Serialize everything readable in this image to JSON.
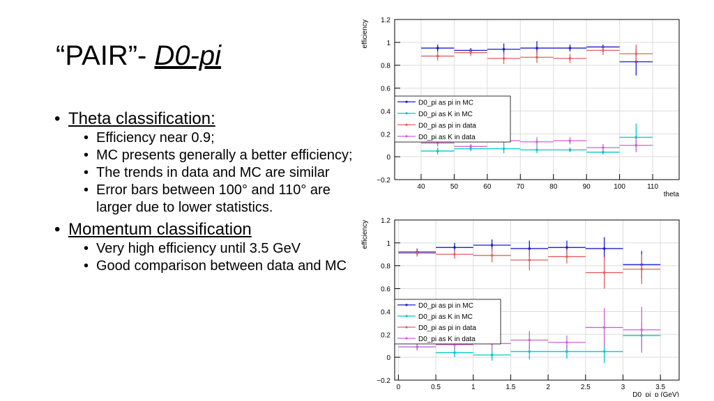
{
  "title": {
    "quote": "“PAIR”- ",
    "italic": "D0-pi"
  },
  "bullets": [
    {
      "heading": "Theta classification:",
      "items": [
        "Efficiency near 0.9;",
        "MC presents generally a better efficiency;",
        "The trends in data and MC are similar",
        "Error bars between 100° and 110° are larger due to lower statistics."
      ]
    },
    {
      "heading": "Momentum classification",
      "items": [
        "Very high efficiency until 3.5 GeV",
        "Good comparison between data and MC"
      ]
    }
  ],
  "chart_data": [
    {
      "type": "scatter",
      "title": "",
      "xlabel": "theta",
      "ylabel": "efficiency",
      "xlim": [
        32,
        118
      ],
      "ylim": [
        -0.2,
        1.2
      ],
      "xticks": [
        40,
        50,
        60,
        70,
        80,
        90,
        100,
        110
      ],
      "yticks": [
        -0.2,
        0,
        0.2,
        0.4,
        0.6,
        0.8,
        1,
        1.2
      ],
      "xtick_labels": [
        "40",
        "50",
        "60",
        "70",
        "80",
        "90",
        "100",
        "110"
      ],
      "ytick_labels": [
        "−0.2",
        "0",
        "0.2",
        "0.4",
        "0.6",
        "0.8",
        "1",
        "1.2"
      ],
      "grid": true,
      "legend_position": "middle-left",
      "series": [
        {
          "name": "D0_pi as pi in MC",
          "color": "#1a1acc",
          "x": [
            45,
            55,
            65,
            75,
            85,
            95,
            105
          ],
          "xerr": 5,
          "y": [
            0.95,
            0.93,
            0.94,
            0.95,
            0.95,
            0.96,
            0.83
          ],
          "yerr": [
            0.03,
            0.02,
            0.05,
            0.06,
            0.03,
            0.02,
            0.12
          ]
        },
        {
          "name": "D0_pi as K in MC",
          "color": "#00c8c8",
          "x": [
            45,
            55,
            65,
            75,
            85,
            95,
            105
          ],
          "xerr": 5,
          "y": [
            0.05,
            0.07,
            0.07,
            0.06,
            0.06,
            0.04,
            0.17
          ],
          "yerr": [
            0.03,
            0.02,
            0.04,
            0.03,
            0.02,
            0.02,
            0.12
          ]
        },
        {
          "name": "D0_pi as pi in data",
          "color": "#e06060",
          "x": [
            45,
            55,
            65,
            75,
            85,
            95,
            105
          ],
          "xerr": 5,
          "y": [
            0.88,
            0.91,
            0.86,
            0.87,
            0.86,
            0.93,
            0.9
          ],
          "yerr": [
            0.04,
            0.03,
            0.05,
            0.05,
            0.04,
            0.04,
            0.08
          ]
        },
        {
          "name": "D0_pi as K in data",
          "color": "#d060d0",
          "x": [
            45,
            55,
            65,
            75,
            85,
            95,
            105
          ],
          "xerr": 5,
          "y": [
            0.12,
            0.09,
            0.14,
            0.13,
            0.14,
            0.08,
            0.1
          ],
          "yerr": [
            0.03,
            0.02,
            0.04,
            0.04,
            0.03,
            0.03,
            0.06
          ]
        }
      ]
    },
    {
      "type": "scatter",
      "title": "",
      "xlabel": "D0_pi_p (GeV)",
      "ylabel": "efficiency",
      "xlim": [
        -0.05,
        3.75
      ],
      "ylim": [
        -0.2,
        1.2
      ],
      "xticks": [
        0,
        0.5,
        1,
        1.5,
        2,
        2.5,
        3,
        3.5
      ],
      "yticks": [
        -0.2,
        0,
        0.2,
        0.4,
        0.6,
        0.8,
        1,
        1.2
      ],
      "xtick_labels": [
        "0",
        "0.5",
        "1",
        "1.5",
        "2",
        "2.5",
        "3",
        "3.5"
      ],
      "ytick_labels": [
        "−0.2",
        "0",
        "0.2",
        "0.4",
        "0.6",
        "0.8",
        "1",
        "1.2"
      ],
      "grid": true,
      "legend_position": "lower-left",
      "series": [
        {
          "name": "D0_pi as pi in MC",
          "color": "#1a1acc",
          "x": [
            0.25,
            0.75,
            1.25,
            1.75,
            2.25,
            2.75,
            3.25
          ],
          "xerr": 0.25,
          "y": [
            0.92,
            0.96,
            0.98,
            0.95,
            0.96,
            0.95,
            0.81
          ],
          "yerr": [
            0.03,
            0.04,
            0.05,
            0.07,
            0.06,
            0.1,
            0.12
          ]
        },
        {
          "name": "D0_pi as K in MC",
          "color": "#00c8c8",
          "x": [
            0.25,
            0.75,
            1.25,
            1.75,
            2.25,
            2.75,
            3.25
          ],
          "xerr": 0.25,
          "y": [
            0.09,
            0.04,
            0.02,
            0.05,
            0.05,
            0.05,
            0.19
          ],
          "yerr": [
            0.03,
            0.04,
            0.05,
            0.07,
            0.06,
            0.1,
            0.12
          ]
        },
        {
          "name": "D0_pi as pi in data",
          "color": "#e06060",
          "x": [
            0.25,
            0.75,
            1.25,
            1.75,
            2.25,
            2.75,
            3.25
          ],
          "xerr": 0.25,
          "y": [
            0.91,
            0.9,
            0.89,
            0.85,
            0.88,
            0.74,
            0.77
          ],
          "yerr": [
            0.03,
            0.04,
            0.06,
            0.09,
            0.06,
            0.14,
            0.13
          ]
        },
        {
          "name": "D0_pi as K in data",
          "color": "#d060d0",
          "x": [
            0.25,
            0.75,
            1.25,
            1.75,
            2.25,
            2.75,
            3.25
          ],
          "xerr": 0.25,
          "y": [
            0.09,
            0.11,
            0.12,
            0.15,
            0.13,
            0.26,
            0.24
          ],
          "yerr": [
            0.03,
            0.04,
            0.06,
            0.08,
            0.06,
            0.17,
            0.2
          ]
        }
      ]
    }
  ]
}
